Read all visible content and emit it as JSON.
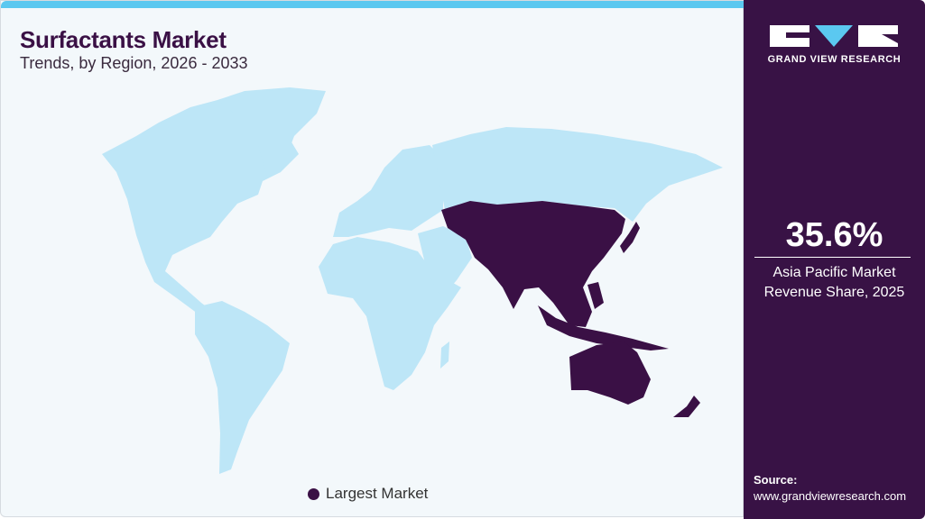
{
  "header": {
    "title": "Surfactants Market",
    "subtitle": "Trends, by Region, 2026 - 2033"
  },
  "map": {
    "highlighted_region": "Asia Pacific",
    "colors": {
      "highlight": "#3a1045",
      "other": "#bde6f7",
      "accent": "#5bc8f0",
      "panel": "#381245"
    }
  },
  "legend": {
    "label": "Largest Market"
  },
  "panel": {
    "logo_text": "GRAND VIEW RESEARCH",
    "stat_value": "35.6%",
    "stat_label_line1": "Asia Pacific Market",
    "stat_label_line2": "Revenue Share, 2025",
    "source_label": "Source:",
    "source_url": "www.grandviewresearch.com"
  }
}
